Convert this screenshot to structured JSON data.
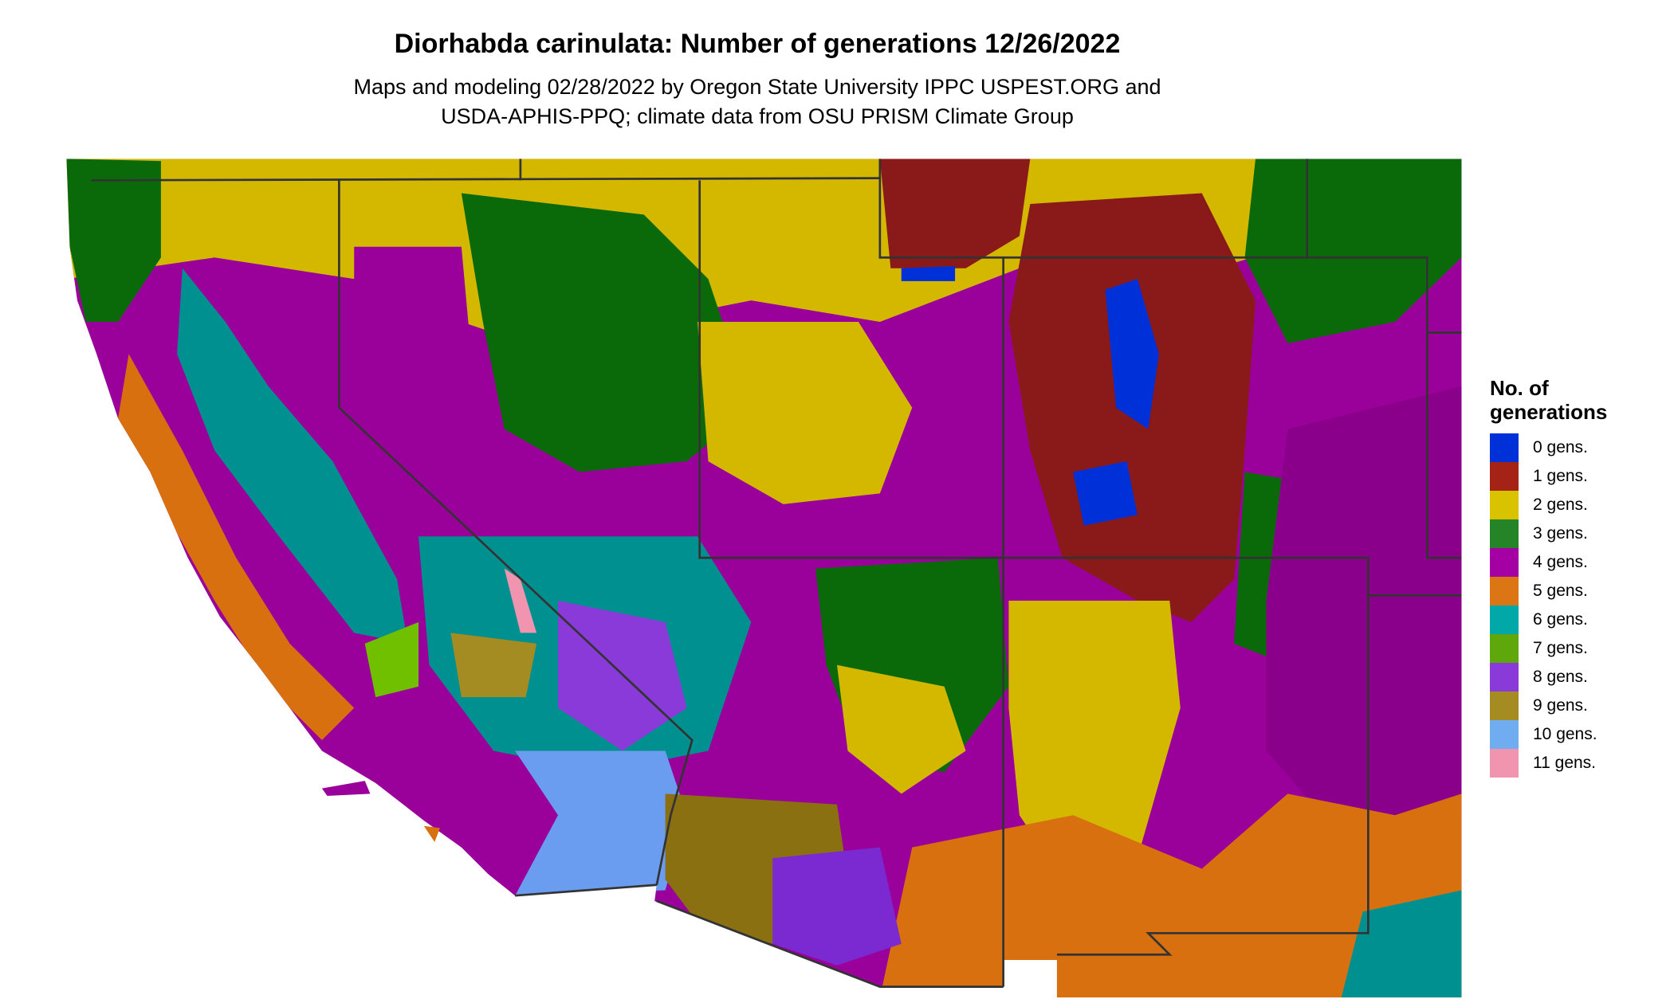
{
  "title": "Diorhabda carinulata: Number of generations 12/26/2022",
  "subtitle_lines": [
    "Maps and modeling 02/28/2022 by Oregon State University IPPC USPEST.ORG and",
    "USDA-APHIS-PPQ; climate data from OSU PRISM Climate Group"
  ],
  "legend": {
    "title_lines": [
      "No. of",
      "generations"
    ],
    "items": [
      {
        "label": "0 gens.",
        "color": "#0030d8"
      },
      {
        "label": "1 gens.",
        "color": "#a42316"
      },
      {
        "label": "2 gens.",
        "color": "#d9c200"
      },
      {
        "label": "3 gens.",
        "color": "#268428"
      },
      {
        "label": "4 gens.",
        "color": "#a400a4"
      },
      {
        "label": "5 gens.",
        "color": "#dc7614"
      },
      {
        "label": "6 gens.",
        "color": "#00a8a8"
      },
      {
        "label": "7 gens.",
        "color": "#5ea80c"
      },
      {
        "label": "8 gens.",
        "color": "#8a3ad8"
      },
      {
        "label": "9 gens.",
        "color": "#a48c22"
      },
      {
        "label": "10 gens.",
        "color": "#70acf0"
      },
      {
        "label": "11 gens.",
        "color": "#f094b0"
      }
    ]
  }
}
